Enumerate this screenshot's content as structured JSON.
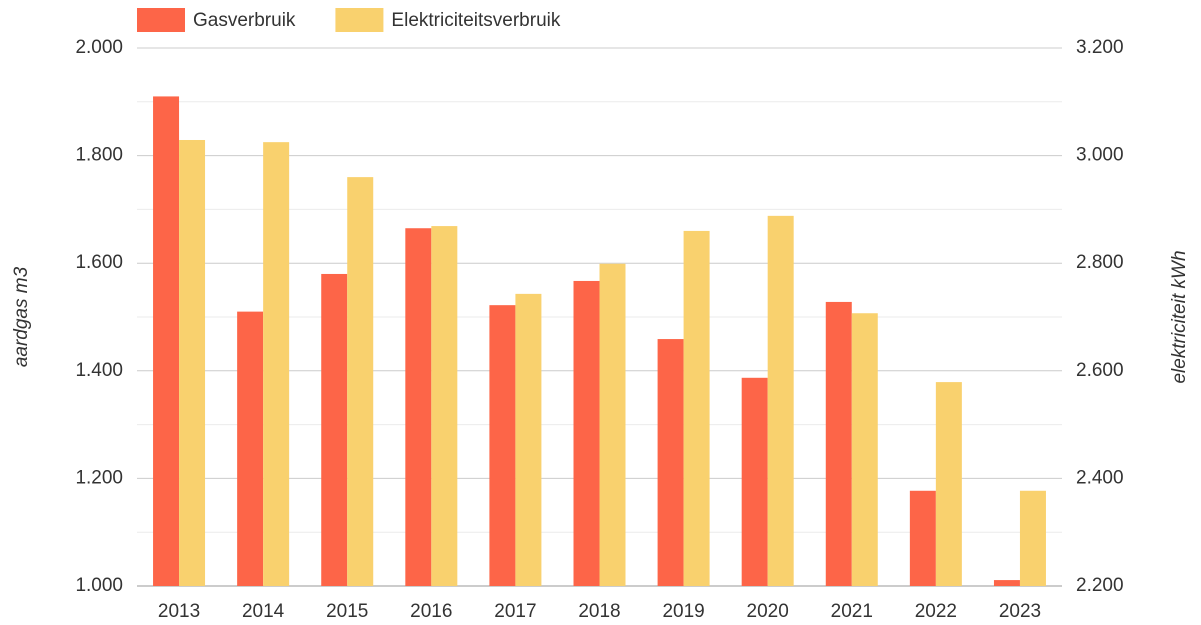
{
  "chart_data": {
    "type": "bar",
    "categories": [
      "2013",
      "2014",
      "2015",
      "2016",
      "2017",
      "2018",
      "2019",
      "2020",
      "2021",
      "2022",
      "2023"
    ],
    "series": [
      {
        "name": "Gasverbruik",
        "color": "#fd6548",
        "values": [
          1910,
          1510,
          1580,
          1665,
          1522,
          1567,
          1459,
          1387,
          1528,
          1177,
          1011
        ]
      },
      {
        "name": "Elektriciteitsverbruik",
        "color": "#f9d16e",
        "axis": "y2",
        "values": [
          3029,
          3025,
          2960,
          2869,
          2743,
          2799,
          2860,
          2888,
          2707,
          2579,
          2377
        ]
      }
    ],
    "ylabel": "aardgas m3",
    "y2label": "elektriciteit kWh",
    "ylim": [
      1000,
      2000
    ],
    "yticks": [
      {
        "value": 1000,
        "label": "1.000"
      },
      {
        "value": 1200,
        "label": "1.200"
      },
      {
        "value": 1400,
        "label": "1.400"
      },
      {
        "value": 1600,
        "label": "1.600"
      },
      {
        "value": 1800,
        "label": "1.800"
      },
      {
        "value": 2000,
        "label": "2.000"
      }
    ],
    "y2lim": [
      2200,
      3200
    ],
    "y2ticks": [
      {
        "value": 2200,
        "label": "2.200"
      },
      {
        "value": 2400,
        "label": "2.400"
      },
      {
        "value": 2600,
        "label": "2.600"
      },
      {
        "value": 2800,
        "label": "2.800"
      },
      {
        "value": 3000,
        "label": "3.000"
      },
      {
        "value": 3200,
        "label": "3.200"
      }
    ],
    "grid": true,
    "legend": "top"
  }
}
